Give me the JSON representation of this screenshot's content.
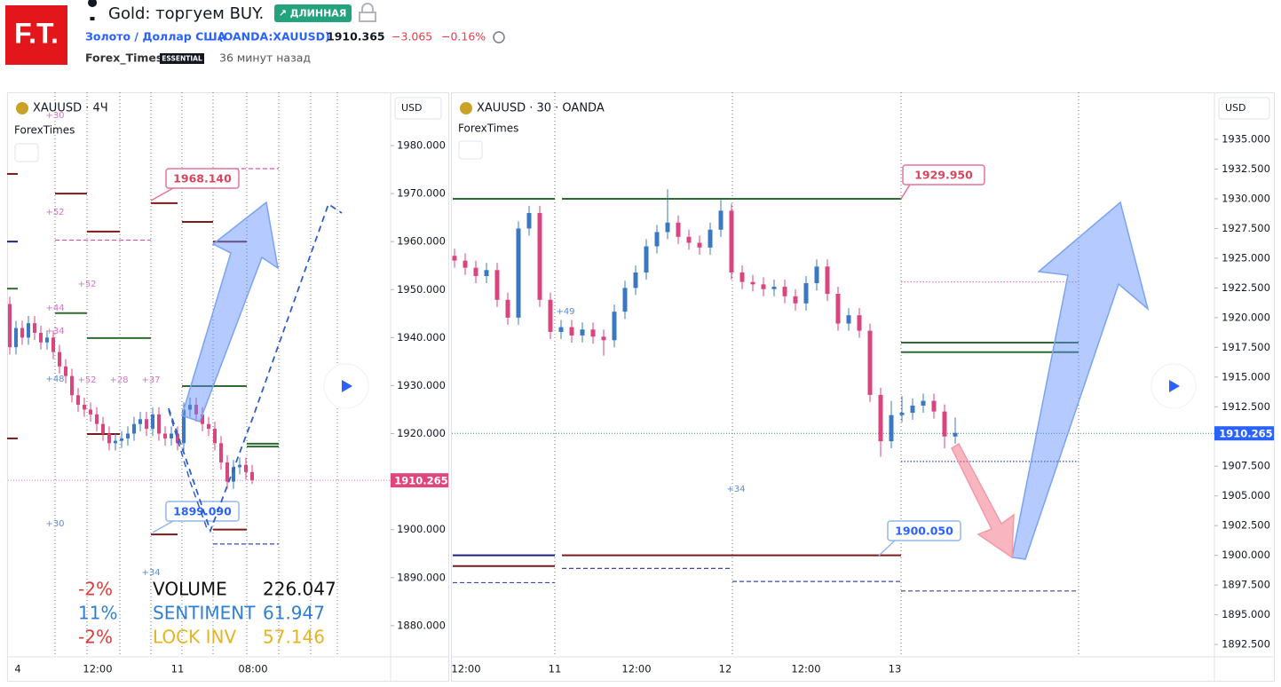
{
  "header": {
    "logo": "F.T.",
    "title": "Gold: торгуем BUY.",
    "badge": "↗ ДЛИННАЯ",
    "instrument": "Золото / Доллар США",
    "ticker": "(OANDA:XAUUSD)",
    "price": "1910.365",
    "change": "−3.065",
    "change_pct": "−0.16%",
    "author": "Forex_Times",
    "author_badge": "ESSENTIAL",
    "time": "36 минут назад"
  },
  "charts": [
    {
      "symbol": "XAUUSD · 4Ч",
      "source": "ForexTimes",
      "currency": "USD",
      "up_color": "#3a78c2",
      "down_color": "#d9457f",
      "ylim": [
        1873.5,
        1991.1
      ],
      "yticks": [
        {
          "value": 1880,
          "label": "1880.000"
        },
        {
          "value": 1890,
          "label": "1890.000"
        },
        {
          "value": 1900,
          "label": "1900.000"
        },
        {
          "value": 1910,
          "label": "1910.000"
        },
        {
          "value": 1920,
          "label": "1920.000"
        },
        {
          "value": 1930,
          "label": "1930.000"
        },
        {
          "value": 1940,
          "label": "1940.000"
        },
        {
          "value": 1950,
          "label": "1950.000"
        },
        {
          "value": 1960,
          "label": "1960.000"
        },
        {
          "value": 1970,
          "label": "1970.000"
        },
        {
          "value": 1980,
          "label": "1980.000"
        }
      ],
      "xlabels": [
        "4",
        "12:00",
        "11",
        "08:00"
      ],
      "last_price": 1910.265,
      "last_color": "#e0457b",
      "candles": {
        "open": [
          1947,
          1938,
          1942,
          1940,
          1943,
          1941,
          1939,
          1940,
          1937,
          1934,
          1932,
          1928,
          1926,
          1925,
          1924,
          1922,
          1920,
          1918,
          1918.5,
          1919,
          1920,
          1922,
          1923,
          1921,
          1924,
          1920,
          1919,
          1920,
          1918,
          1925,
          1926,
          1924,
          1922,
          1921,
          1918,
          1914,
          1910,
          1913,
          1913.5,
          1912
        ],
        "high": [
          1948.5,
          1943.5,
          1943.5,
          1944.5,
          1944.5,
          1942.5,
          1941.5,
          1941.5,
          1938.5,
          1935.5,
          1933.5,
          1929.5,
          1927.5,
          1926.5,
          1925.5,
          1923.5,
          1921.5,
          1920,
          1920.5,
          1921.5,
          1923.5,
          1924.5,
          1924.5,
          1925.5,
          1925.5,
          1921.5,
          1921.5,
          1921.5,
          1926.5,
          1927.5,
          1927.5,
          1925.5,
          1923.5,
          1922.5,
          1919.5,
          1915.5,
          1914.5,
          1915,
          1915,
          1913.5
        ],
        "low": [
          1936.5,
          1936.5,
          1938.5,
          1938.5,
          1939.5,
          1937.5,
          1937.5,
          1935.5,
          1932.5,
          1930.5,
          1926.5,
          1924.5,
          1923.5,
          1922.5,
          1920.5,
          1918.5,
          1916.5,
          1916.5,
          1917,
          1917.5,
          1918.5,
          1920.5,
          1919.5,
          1919.5,
          1918.5,
          1917.5,
          1917.5,
          1916.5,
          1916.5,
          1923.5,
          1922.5,
          1920.5,
          1919.5,
          1916.5,
          1912.5,
          1908.5,
          1908.5,
          1911.5,
          1910.5,
          1909.5
        ],
        "close": [
          1938,
          1942,
          1940,
          1943,
          1941,
          1939,
          1940,
          1937,
          1934,
          1932,
          1928,
          1926,
          1925,
          1924,
          1922,
          1920,
          1918,
          1918.5,
          1919,
          1920,
          1922,
          1923,
          1921,
          1924,
          1920,
          1919,
          1920,
          1918,
          1925,
          1926,
          1924,
          1922,
          1921,
          1918,
          1914,
          1910,
          1913,
          1913.5,
          1912,
          1910.3
        ]
      },
      "levels": [
        {
          "price": 1974.1,
          "color": "#7b1a1a",
          "style": "solid"
        },
        {
          "price": 1970,
          "color": "#7b1a1a",
          "style": "solid"
        },
        {
          "price": 1968,
          "color": "#7b1a1a",
          "style": "solid"
        },
        {
          "price": 1964.1,
          "color": "#7b1a1a",
          "style": "solid"
        },
        {
          "price": 1962.1,
          "color": "#7b1a1a",
          "style": "solid"
        },
        {
          "price": 1960,
          "color": "#7b1a1a",
          "style": "solid"
        },
        {
          "price": 1960,
          "color": "#1a237e",
          "style": "solid"
        },
        {
          "price": 1960.3,
          "color": "#d05aa0",
          "style": "dashed"
        },
        {
          "price": 1975.2,
          "color": "#d05aa0",
          "style": "dashed"
        },
        {
          "price": 1950.2,
          "color": "#2e6b30",
          "style": "solid"
        },
        {
          "price": 1945.1,
          "color": "#2e6b30",
          "style": "solid"
        },
        {
          "price": 1939.9,
          "color": "#2e6b30",
          "style": "solid"
        },
        {
          "price": 1929.9,
          "color": "#2e6b30",
          "style": "solid"
        },
        {
          "price": 1917.9,
          "color": "#2e6b30",
          "style": "solid"
        },
        {
          "price": 1917.3,
          "color": "#2e6b30",
          "style": "solid"
        },
        {
          "price": 1919.9,
          "color": "#7b1a1a",
          "style": "solid"
        },
        {
          "price": 1919,
          "color": "#7b1a1a",
          "style": "solid"
        },
        {
          "price": 1900,
          "color": "#7b1a1a",
          "style": "solid"
        },
        {
          "price": 1899,
          "color": "#7b1a1a",
          "style": "solid"
        },
        {
          "price": 1897,
          "color": "#3949ab",
          "style": "dashed"
        }
      ],
      "callouts": [
        "1968.140",
        "1899.090"
      ],
      "tags": [
        {
          "text": "+30",
          "color": "#d673c6"
        },
        {
          "text": "+52",
          "color": "#d673c6"
        },
        {
          "text": "+52",
          "color": "#d673c6"
        },
        {
          "text": "+44",
          "color": "#d673c6"
        },
        {
          "text": "+34",
          "color": "#d673c6"
        },
        {
          "text": "+48",
          "color": "#5b8dd6"
        },
        {
          "text": "+52",
          "color": "#d673c6"
        },
        {
          "text": "+28",
          "color": "#d673c6"
        },
        {
          "text": "+37",
          "color": "#d673c6"
        },
        {
          "text": "+30",
          "color": "#5b8dd6"
        },
        {
          "text": "+34",
          "color": "#5b8dd6"
        }
      ],
      "stats": [
        {
          "pct": "-2%",
          "pct_color": "#e03a3a",
          "name": "VOLUME",
          "name_color": "#111111",
          "value": "226.047"
        },
        {
          "pct": "11%",
          "pct_color": "#2f7fd0",
          "name": "SENTIMENT",
          "name_color": "#2f7fd0",
          "value": "61.947"
        },
        {
          "pct": "-2%",
          "pct_color": "#e03a3a",
          "name": "LOCK INV",
          "name_color": "#e6b422",
          "value": "57.146"
        }
      ]
    },
    {
      "symbol": "XAUUSD · 30 · OANDA",
      "source": "ForexTimes",
      "currency": "USD",
      "up_color": "#3a78c2",
      "down_color": "#d9457f",
      "ylim": [
        1891.46,
        1938.96
      ],
      "yticks": [
        {
          "value": 1892.5,
          "label": "1892.500"
        },
        {
          "value": 1895,
          "label": "1895.000"
        },
        {
          "value": 1897.5,
          "label": "1897.500"
        },
        {
          "value": 1900,
          "label": "1900.000"
        },
        {
          "value": 1902.5,
          "label": "1902.500"
        },
        {
          "value": 1905,
          "label": "1905.000"
        },
        {
          "value": 1907.5,
          "label": "1907.500"
        },
        {
          "value": 1910,
          "label": "1910.000"
        },
        {
          "value": 1912.5,
          "label": "1912.500"
        },
        {
          "value": 1915,
          "label": "1915.000"
        },
        {
          "value": 1917.5,
          "label": "1917.500"
        },
        {
          "value": 1920,
          "label": "1920.000"
        },
        {
          "value": 1922.5,
          "label": "1922.500"
        },
        {
          "value": 1925,
          "label": "1925.000"
        },
        {
          "value": 1927.5,
          "label": "1927.500"
        },
        {
          "value": 1930,
          "label": "1930.000"
        },
        {
          "value": 1932.5,
          "label": "1932.500"
        },
        {
          "value": 1935,
          "label": "1935.000"
        }
      ],
      "xlabels": [
        "12:00",
        "11",
        "12:00",
        "12",
        "12:00",
        "13"
      ],
      "last_price": 1910.265,
      "last_color": "#2962ff",
      "candles": {
        "open": [
          1925.2,
          1924.8,
          1924.2,
          1923.5,
          1924,
          1921.5,
          1920,
          1927.5,
          1928.8,
          1921.5,
          1918.8,
          1919.2,
          1918.5,
          1919,
          1918.4,
          1918.1,
          1920.5,
          1922.5,
          1923.8,
          1926,
          1927.2,
          1928,
          1926.8,
          1926.3,
          1925.9,
          1927.4,
          1929,
          1923.8,
          1923,
          1922.8,
          1922.4,
          1922.6,
          1921.8,
          1921.2,
          1922.9,
          1924.3,
          1922,
          1919.5,
          1920.2,
          1918.9,
          1913.5,
          1909.6,
          1911.8,
          1912,
          1912.6,
          1913,
          1912.1,
          1910
        ],
        "high": [
          1925.8,
          1925.4,
          1924.8,
          1924.6,
          1924.6,
          1922.1,
          1928.1,
          1929.4,
          1929.4,
          1922.1,
          1919.8,
          1919.8,
          1919.6,
          1919.6,
          1919,
          1921.1,
          1923.1,
          1924.4,
          1926.6,
          1927.8,
          1930.8,
          1928.6,
          1927.4,
          1926.9,
          1928,
          1929.9,
          1929.6,
          1924.4,
          1923.6,
          1923.4,
          1923.2,
          1923.2,
          1922.4,
          1923.5,
          1924.9,
          1924.9,
          1922.6,
          1920.8,
          1920.8,
          1919.5,
          1914.1,
          1913,
          1913.4,
          1913.2,
          1913.6,
          1913.6,
          1912.7,
          1911.6
        ],
        "low": [
          1924.2,
          1923.6,
          1922.9,
          1922.9,
          1920.9,
          1919.4,
          1919.4,
          1926.9,
          1920.9,
          1918.2,
          1918.2,
          1917.9,
          1917.9,
          1917.8,
          1916.8,
          1917.5,
          1919.9,
          1921.9,
          1923.2,
          1925.4,
          1926.6,
          1926.2,
          1925.7,
          1925.3,
          1925.3,
          1926.8,
          1923.2,
          1922.4,
          1922.2,
          1921.8,
          1921.8,
          1921.2,
          1920.6,
          1920.6,
          1922.3,
          1921.4,
          1918.9,
          1918.9,
          1918.3,
          1912.9,
          1908.3,
          1909,
          1911.2,
          1911.4,
          1912,
          1911.5,
          1909,
          1909.4
        ],
        "close": [
          1924.8,
          1924.2,
          1923.5,
          1924,
          1921.5,
          1920,
          1927.5,
          1928.8,
          1921.5,
          1918.8,
          1919.2,
          1918.5,
          1919,
          1918.4,
          1918.1,
          1920.5,
          1922.5,
          1923.8,
          1926,
          1927.2,
          1928,
          1926.8,
          1926.3,
          1925.9,
          1927.4,
          1929,
          1923.8,
          1923,
          1922.8,
          1922.4,
          1922.6,
          1921.8,
          1921.2,
          1922.9,
          1924.3,
          1922,
          1919.5,
          1920.2,
          1918.9,
          1913.5,
          1909.6,
          1911.8,
          1912,
          1912.6,
          1913,
          1912.1,
          1910,
          1910.3
        ]
      },
      "levels": [
        {
          "price": 1930,
          "color": "#2e6b30",
          "style": "solid"
        },
        {
          "price": 1930,
          "color": "#2e6b30",
          "style": "solid"
        },
        {
          "price": 1900,
          "color": "#1a237e",
          "style": "solid"
        },
        {
          "price": 1899.1,
          "color": "#7b1a1a",
          "style": "solid"
        },
        {
          "price": 1900,
          "color": "#7b1a1a",
          "style": "solid"
        },
        {
          "price": 1897.7,
          "color": "#3949ab",
          "style": "dashed"
        },
        {
          "price": 1898.9,
          "color": "#3949ab",
          "style": "dashed"
        },
        {
          "price": 1897.8,
          "color": "#3949ab",
          "style": "dashed"
        },
        {
          "price": 1897,
          "color": "#3949ab",
          "style": "dashed"
        },
        {
          "price": 1923,
          "color": "#e57399",
          "style": "dotted"
        },
        {
          "price": 1917.9,
          "color": "#2e6b30",
          "style": "solid"
        },
        {
          "price": 1917.1,
          "color": "#2e6b30",
          "style": "solid"
        },
        {
          "price": 1907.9,
          "color": "#3949ab",
          "style": "dotted"
        }
      ],
      "callouts": [
        "1929.950",
        "1900.050"
      ],
      "tags": [
        {
          "text": "+49",
          "color": "#5b8dd6"
        },
        {
          "text": "+34",
          "color": "#5b8dd6"
        }
      ],
      "stats": []
    }
  ]
}
